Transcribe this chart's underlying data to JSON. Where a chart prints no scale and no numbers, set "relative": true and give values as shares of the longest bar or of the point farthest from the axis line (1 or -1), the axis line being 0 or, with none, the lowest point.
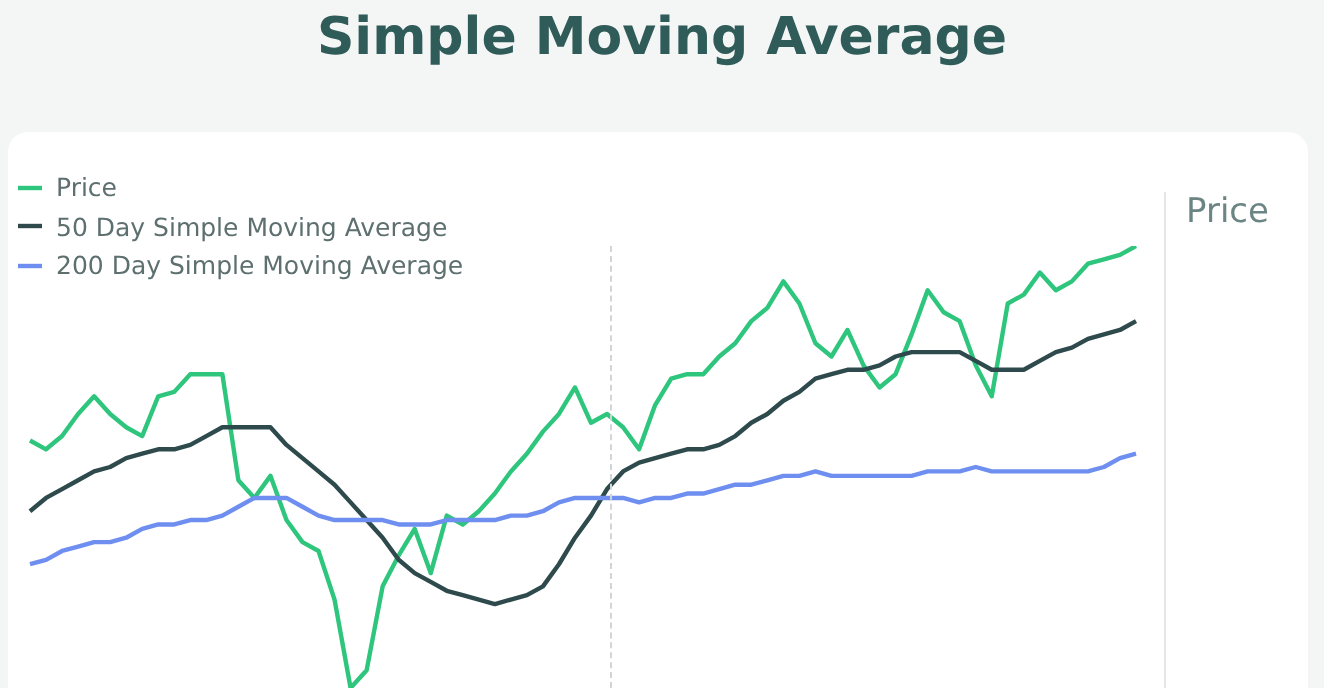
{
  "chart_data": {
    "type": "line",
    "title": "Simple Moving Average",
    "ylabel": "Price",
    "relative": true,
    "legend": "top left",
    "grid": false,
    "marker": "none",
    "line_style": "solid",
    "categories": [
      null,
      null,
      null,
      null,
      null,
      null,
      null,
      null,
      null,
      null,
      null,
      null,
      null,
      null,
      null,
      null,
      null,
      null,
      null,
      null,
      null,
      null,
      null,
      null,
      null,
      null,
      null,
      null,
      null,
      null,
      null,
      null,
      null,
      null,
      null,
      null,
      null,
      null,
      null,
      null,
      null,
      null,
      null,
      null,
      null,
      null,
      null,
      null,
      null,
      null,
      null,
      null,
      null,
      null,
      null,
      null,
      null,
      null,
      null,
      null,
      null,
      null,
      null,
      null,
      null,
      null,
      null,
      null,
      null,
      null
    ],
    "series": [
      {
        "name": "Price",
        "color": "#2ec57c",
        "values": [
          0.56,
          0.54,
          0.57,
          0.62,
          0.66,
          0.62,
          0.59,
          0.57,
          0.66,
          0.67,
          0.71,
          0.71,
          0.71,
          0.47,
          0.43,
          0.48,
          0.38,
          0.33,
          0.31,
          0.2,
          0,
          0.04,
          0.23,
          0.3,
          0.36,
          0.26,
          0.39,
          0.37,
          0.4,
          0.44,
          0.49,
          0.53,
          0.58,
          0.62,
          0.68,
          0.6,
          0.62,
          0.59,
          0.54,
          0.64,
          0.7,
          0.71,
          0.71,
          0.75,
          0.78,
          0.83,
          0.86,
          0.92,
          0.87,
          0.78,
          0.75,
          0.81,
          0.73,
          0.68,
          0.71,
          0.8,
          0.9,
          0.85,
          0.83,
          0.73,
          0.66,
          0.87,
          0.89,
          0.94,
          0.9,
          0.92,
          0.96,
          0.97,
          0.98,
          1
        ]
      },
      {
        "name": "50 Day Simple Moving Average",
        "color": "#2e4a4c",
        "values": [
          0.4,
          0.43,
          0.45,
          0.47,
          0.49,
          0.5,
          0.52,
          0.53,
          0.54,
          0.54,
          0.55,
          0.57,
          0.59,
          0.59,
          0.59,
          0.59,
          0.55,
          0.52,
          0.49,
          0.46,
          0.42,
          0.38,
          0.34,
          0.29,
          0.26,
          0.24,
          0.22,
          0.21,
          0.2,
          0.19,
          0.2,
          0.21,
          0.23,
          0.28,
          0.34,
          0.39,
          0.45,
          0.49,
          0.51,
          0.52,
          0.53,
          0.54,
          0.54,
          0.55,
          0.57,
          0.6,
          0.62,
          0.65,
          0.67,
          0.7,
          0.71,
          0.72,
          0.72,
          0.73,
          0.75,
          0.76,
          0.76,
          0.76,
          0.76,
          0.74,
          0.72,
          0.72,
          0.72,
          0.74,
          0.76,
          0.77,
          0.79,
          0.8,
          0.81,
          0.83
        ]
      },
      {
        "name": "200 Day Simple Moving Average",
        "color": "#6f8ff0",
        "values": [
          0.28,
          0.29,
          0.31,
          0.32,
          0.33,
          0.33,
          0.34,
          0.36,
          0.37,
          0.37,
          0.38,
          0.38,
          0.39,
          0.41,
          0.43,
          0.43,
          0.43,
          0.41,
          0.39,
          0.38,
          0.38,
          0.38,
          0.38,
          0.37,
          0.37,
          0.37,
          0.38,
          0.38,
          0.38,
          0.38,
          0.39,
          0.39,
          0.4,
          0.42,
          0.43,
          0.43,
          0.43,
          0.43,
          0.42,
          0.43,
          0.43,
          0.44,
          0.44,
          0.45,
          0.46,
          0.46,
          0.47,
          0.48,
          0.48,
          0.49,
          0.48,
          0.48,
          0.48,
          0.48,
          0.48,
          0.48,
          0.49,
          0.49,
          0.49,
          0.5,
          0.49,
          0.49,
          0.49,
          0.49,
          0.49,
          0.49,
          0.49,
          0.5,
          0.52,
          0.53
        ]
      }
    ]
  }
}
